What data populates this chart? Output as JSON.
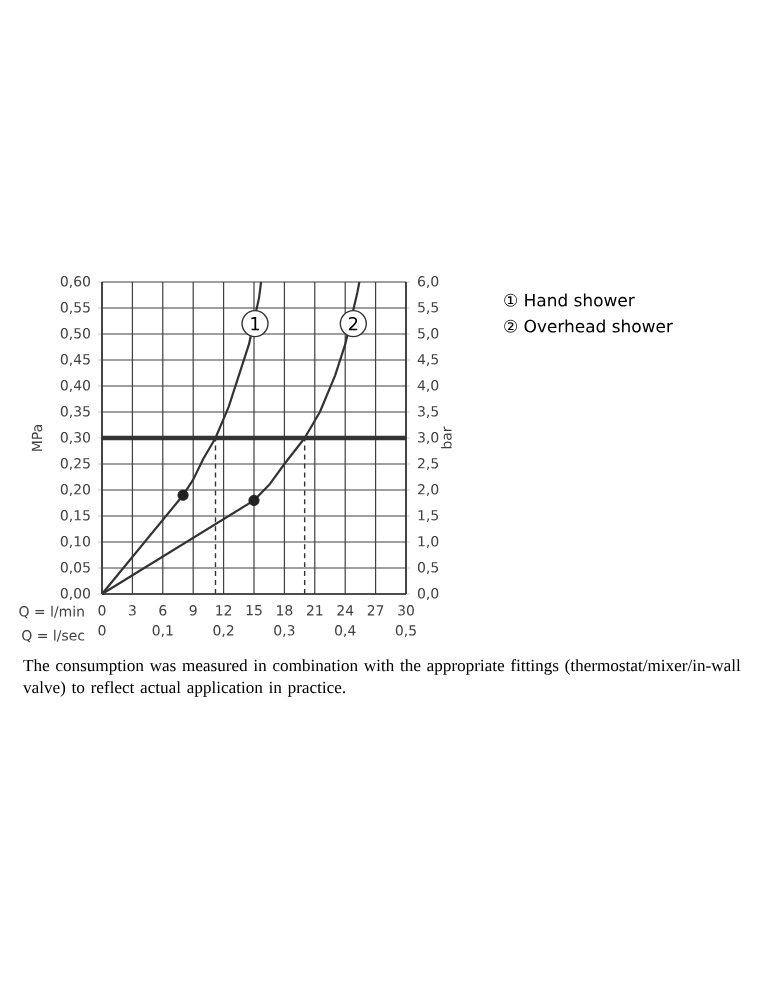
{
  "chart_data": {
    "type": "line",
    "xlabel": "Q = l/min",
    "ylabel": "MPa",
    "y2label": "bar",
    "x2label": "Q = l/sec",
    "xlim": [
      0,
      30
    ],
    "xticks": [
      0,
      3,
      6,
      9,
      12,
      15,
      18,
      21,
      24,
      27,
      30
    ],
    "x2lim": [
      0,
      0.5
    ],
    "x2ticks": [
      {
        "value": 0,
        "label": "0"
      },
      {
        "value": 0.1,
        "label": "0,1"
      },
      {
        "value": 0.2,
        "label": "0,2"
      },
      {
        "value": 0.3,
        "label": "0,3"
      },
      {
        "value": 0.4,
        "label": "0,4"
      },
      {
        "value": 0.5,
        "label": "0,5"
      }
    ],
    "ylim": [
      0,
      0.6
    ],
    "yticks": [
      {
        "value": 0,
        "label": "0,00"
      },
      {
        "value": 0.05,
        "label": "0,05"
      },
      {
        "value": 0.1,
        "label": "0,10"
      },
      {
        "value": 0.15,
        "label": "0,15"
      },
      {
        "value": 0.2,
        "label": "0,20"
      },
      {
        "value": 0.25,
        "label": "0,25"
      },
      {
        "value": 0.3,
        "label": "0,30"
      },
      {
        "value": 0.35,
        "label": "0,35"
      },
      {
        "value": 0.4,
        "label": "0,40"
      },
      {
        "value": 0.45,
        "label": "0,45"
      },
      {
        "value": 0.5,
        "label": "0,50"
      },
      {
        "value": 0.55,
        "label": "0,55"
      },
      {
        "value": 0.6,
        "label": "0,60"
      }
    ],
    "y2lim": [
      0,
      6
    ],
    "y2ticks": [
      {
        "value": 0,
        "label": "0,0"
      },
      {
        "value": 0.5,
        "label": "0,5"
      },
      {
        "value": 1,
        "label": "1,0"
      },
      {
        "value": 1.5,
        "label": "1,5"
      },
      {
        "value": 2,
        "label": "2,0"
      },
      {
        "value": 2.5,
        "label": "2,5"
      },
      {
        "value": 3,
        "label": "3,0"
      },
      {
        "value": 3.5,
        "label": "3,5"
      },
      {
        "value": 4,
        "label": "4,0"
      },
      {
        "value": 4.5,
        "label": "4,5"
      },
      {
        "value": 5,
        "label": "5,0"
      },
      {
        "value": 5.5,
        "label": "5,5"
      },
      {
        "value": 6,
        "label": "6,0"
      }
    ],
    "grid": true,
    "legend": "right",
    "series": [
      {
        "name": "① Hand shower",
        "color": "#333333",
        "x": [
          0,
          8,
          9,
          10,
          11.2,
          12.5,
          13.5,
          14.5,
          15.5,
          15.7
        ],
        "values": [
          0,
          0.19,
          0.22,
          0.26,
          0.3,
          0.36,
          0.42,
          0.48,
          0.57,
          0.6
        ]
      },
      {
        "name": "② Overhead shower",
        "color": "#333333",
        "x": [
          0,
          15,
          16.5,
          18,
          20,
          21.5,
          23,
          24,
          25.2,
          25.4
        ],
        "values": [
          0,
          0.18,
          0.21,
          0.25,
          0.3,
          0.35,
          0.42,
          0.48,
          0.58,
          0.6
        ]
      },
      {
        "type": "scatter",
        "marker": "circle",
        "color": "#222222",
        "x": [
          8,
          15
        ],
        "values": [
          0.19,
          0.18
        ]
      }
    ],
    "ref_lines": [
      {
        "axis": "y",
        "value": 0.3,
        "color": "#333333",
        "line_style": "solid"
      },
      {
        "axis": "x",
        "value": 11.2,
        "color": "#333333",
        "line_style": "dashed"
      },
      {
        "axis": "x",
        "value": 20,
        "color": "#333333",
        "line_style": "dashed"
      }
    ],
    "annotations": [
      {
        "text": "1",
        "x": 15.1,
        "y": 0.52
      },
      {
        "text": "2",
        "x": 24.8,
        "y": 0.52
      },
      "The consumption was measured in combination with the appropriate fittings (thermostat/mixer/in-wall valve) to reflect actual application in practice."
    ]
  }
}
